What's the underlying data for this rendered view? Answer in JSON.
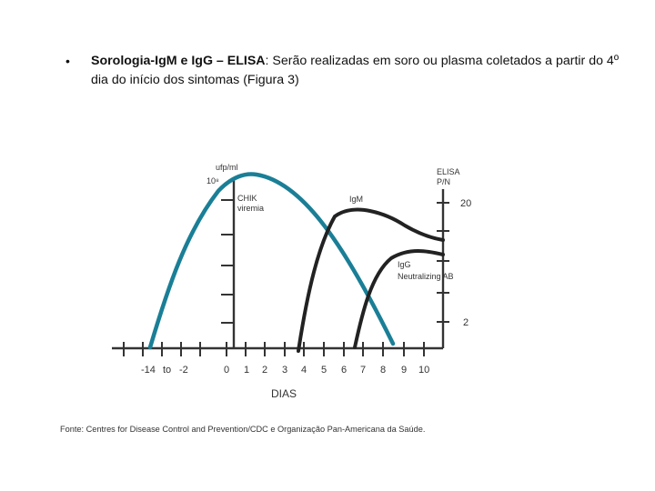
{
  "paragraph": {
    "bullet": "•",
    "bold_title": "Sorologia-IgM e IgG – ELISA",
    "text": ": Serão realizadas em soro ou plasma coletados a partir do 4º dia do início dos sintomas (Figura 3)"
  },
  "figure": {
    "left_axis_unit": "ufp/ml",
    "left_axis_top": "10⁸",
    "right_axis_title_line1": "ELISA",
    "right_axis_title_line2": "P/N",
    "right_tick_top": "20",
    "right_tick_bottom": "2",
    "x_title": "DIAS",
    "x_ticks": [
      "-14",
      "to",
      "-2",
      "0",
      "1",
      "2",
      "3",
      "4",
      "5",
      "6",
      "7",
      "8",
      "9",
      "10"
    ],
    "curve_labels": {
      "viremia_line1": "CHIK",
      "viremia_line2": "viremia",
      "igm": "IgM",
      "igg_line1": "IgG",
      "igg_line2": "Neutralizing AB"
    },
    "colors": {
      "viremia": "#1a7f96",
      "antibody": "#222222",
      "axis": "#333333"
    }
  },
  "source": "Fonte: Centres for Disease Control and Prevention/CDC e Organização Pan-Americana da Saúde."
}
